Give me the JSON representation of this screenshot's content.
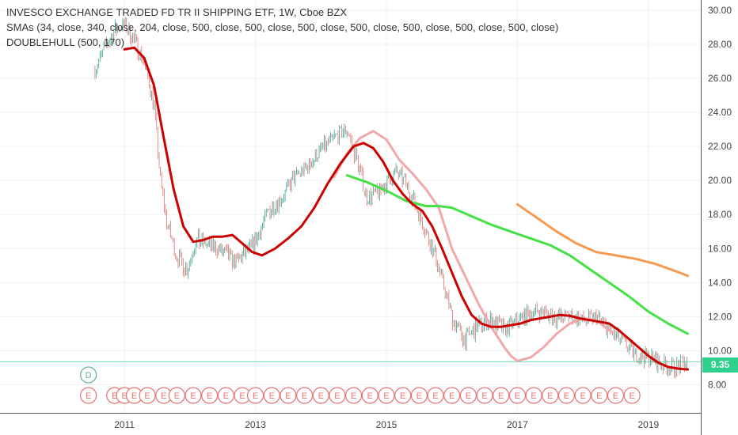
{
  "legend": {
    "line1": "INVESCO EXCHANGE TRADED FD TR II SHIPPING ETF, 1W, Cboe BZX",
    "line2": "SMAs (34, close, 340, close, 204, close, 500, close, 500, close, 500, close, 500, close, 500, close, 500, close, 500, close)",
    "line3": "DOUBLEHULL (500, 170)"
  },
  "price_label": "9.35",
  "colors": {
    "sma34": "#cc0000",
    "sma_faded": "#f0a8a8",
    "sma204": "#45e045",
    "sma340": "#f59a50",
    "candle_up": "#3aa38f",
    "candle_down": "#e36f6f",
    "price_line": "#2ed18b",
    "event_circle": "#e57373",
    "dividend_circle": "#5fb08a"
  },
  "chart_data": {
    "type": "line",
    "x_unit": "year",
    "xlim": [
      2009.1,
      2019.8
    ],
    "ylim": [
      6.35,
      30.6
    ],
    "x_ticks": [
      2011,
      2013,
      2015,
      2017,
      2019
    ],
    "x_tick_labels": [
      "2011",
      "2013",
      "2015",
      "2017",
      "2019"
    ],
    "y_ticks": [
      8,
      10,
      12,
      14,
      16,
      18,
      20,
      22,
      24,
      26,
      28,
      30
    ],
    "y_tick_labels": [
      "8.00",
      "10.00",
      "12.00",
      "14.00",
      "16.00",
      "18.00",
      "20.00",
      "22.00",
      "24.00",
      "26.00",
      "28.00",
      "30.00"
    ],
    "last_price": 9.35,
    "grid": true,
    "price": {
      "x": [
        2010.55,
        2010.7,
        2010.85,
        2011.0,
        2011.15,
        2011.3,
        2011.45,
        2011.55,
        2011.65,
        2011.8,
        2011.95,
        2012.1,
        2012.3,
        2012.5,
        2012.7,
        2012.9,
        2013.0,
        2013.2,
        2013.4,
        2013.6,
        2013.8,
        2014.0,
        2014.2,
        2014.4,
        2014.55,
        2014.7,
        2014.85,
        2015.0,
        2015.15,
        2015.3,
        2015.45,
        2015.6,
        2015.75,
        2015.9,
        2016.0,
        2016.2,
        2016.4,
        2016.6,
        2016.8,
        2017.0,
        2017.2,
        2017.4,
        2017.6,
        2017.8,
        2018.0,
        2018.2,
        2018.4,
        2018.6,
        2018.8,
        2019.0,
        2019.2,
        2019.4,
        2019.6
      ],
      "y": [
        26.5,
        27.8,
        28.8,
        29.2,
        28.2,
        27.0,
        24.5,
        20.0,
        17.5,
        15.5,
        14.8,
        16.5,
        16.2,
        15.8,
        15.2,
        15.9,
        16.4,
        18.2,
        19.0,
        20.2,
        20.8,
        21.8,
        22.5,
        23.0,
        21.2,
        19.0,
        19.2,
        19.8,
        20.5,
        19.8,
        18.5,
        17.0,
        15.5,
        13.5,
        12.0,
        10.6,
        11.5,
        11.8,
        11.2,
        11.8,
        12.2,
        12.3,
        11.9,
        12.1,
        11.7,
        12.0,
        11.2,
        10.5,
        9.8,
        9.6,
        9.2,
        9.0,
        9.35
      ]
    },
    "series": [
      {
        "key": "sma34",
        "x": [
          2011.0,
          2011.15,
          2011.3,
          2011.45,
          2011.6,
          2011.75,
          2011.9,
          2012.05,
          2012.2,
          2012.35,
          2012.5,
          2012.65,
          2012.8,
          2012.95,
          2013.1,
          2013.3,
          2013.5,
          2013.7,
          2013.9,
          2014.1,
          2014.3,
          2014.5,
          2014.65,
          2014.8,
          2014.95,
          2015.1,
          2015.25,
          2015.4,
          2015.55,
          2015.7,
          2015.85,
          2016.0,
          2016.15,
          2016.3,
          2016.45,
          2016.6,
          2016.75,
          2016.9,
          2017.05,
          2017.2,
          2017.35,
          2017.5,
          2017.65,
          2017.8,
          2017.95,
          2018.1,
          2018.25,
          2018.4,
          2018.55,
          2018.7,
          2018.85,
          2019.0,
          2019.15,
          2019.3,
          2019.45,
          2019.6
        ],
        "y": [
          27.7,
          27.8,
          27.2,
          25.6,
          22.5,
          19.5,
          17.3,
          16.4,
          16.5,
          16.7,
          16.7,
          16.8,
          16.3,
          15.8,
          15.6,
          16.0,
          16.6,
          17.3,
          18.4,
          19.8,
          21.0,
          22.0,
          22.2,
          21.9,
          21.1,
          20.0,
          19.2,
          18.6,
          18.2,
          17.3,
          16.0,
          14.6,
          13.2,
          12.1,
          11.6,
          11.4,
          11.4,
          11.5,
          11.6,
          11.8,
          11.9,
          12.0,
          12.1,
          12.05,
          11.9,
          11.8,
          11.7,
          11.6,
          11.2,
          10.7,
          10.2,
          9.7,
          9.3,
          9.05,
          8.95,
          8.9
        ]
      },
      {
        "key": "sma_faded",
        "x": [
          2014.2,
          2014.4,
          2014.6,
          2014.8,
          2015.0,
          2015.2,
          2015.4,
          2015.6,
          2015.8,
          2016.0,
          2016.2,
          2016.4,
          2016.6,
          2016.8,
          2016.9,
          2017.0,
          2017.2,
          2017.4,
          2017.6,
          2017.8,
          2018.0,
          2018.2,
          2018.4
        ],
        "y": [
          20.2,
          21.6,
          22.5,
          22.9,
          22.4,
          21.2,
          20.4,
          19.5,
          18.4,
          16.0,
          14.4,
          12.8,
          11.4,
          10.2,
          9.7,
          9.4,
          9.6,
          10.2,
          11.0,
          11.6,
          11.9,
          11.8,
          11.2
        ]
      },
      {
        "key": "sma204",
        "x": [
          2014.4,
          2014.7,
          2015.0,
          2015.3,
          2015.6,
          2015.8,
          2016.0,
          2016.3,
          2016.6,
          2016.9,
          2017.2,
          2017.5,
          2017.8,
          2018.1,
          2018.4,
          2018.7,
          2019.0,
          2019.3,
          2019.6
        ],
        "y": [
          20.3,
          19.9,
          19.4,
          18.8,
          18.5,
          18.5,
          18.4,
          17.9,
          17.4,
          17.0,
          16.6,
          16.2,
          15.6,
          14.8,
          14.0,
          13.2,
          12.3,
          11.6,
          11.0
        ]
      },
      {
        "key": "sma340",
        "x": [
          2017.0,
          2017.3,
          2017.6,
          2017.9,
          2018.2,
          2018.5,
          2018.8,
          2019.1,
          2019.4,
          2019.6
        ],
        "y": [
          18.6,
          17.8,
          17.0,
          16.3,
          15.8,
          15.6,
          15.4,
          15.1,
          14.7,
          14.4
        ]
      }
    ],
    "dividend_marker": {
      "x": 2010.45,
      "label": "D"
    },
    "event_markers": {
      "x": [
        2010.45,
        2010.85,
        2011.0,
        2011.15,
        2011.35,
        2011.6,
        2011.8,
        2012.05,
        2012.3,
        2012.55,
        2012.8,
        2013.0,
        2013.25,
        2013.5,
        2013.75,
        2014.0,
        2014.25,
        2014.5,
        2014.75,
        2015.0,
        2015.25,
        2015.5,
        2015.75,
        2016.0,
        2016.25,
        2016.5,
        2016.75,
        2017.0,
        2017.25,
        2017.5,
        2017.75,
        2018.0,
        2018.25,
        2018.5,
        2018.75
      ],
      "labels": [
        "E",
        "E",
        "E",
        "E",
        "E",
        "E",
        "E",
        "E",
        "E",
        "E",
        "E",
        "E",
        "E",
        "E",
        "E",
        "E",
        "E",
        "E",
        "E",
        "E",
        "E",
        "E",
        "E",
        "E",
        "E",
        "E",
        "E",
        "E",
        "E",
        "E",
        "E",
        "E",
        "E",
        "E",
        "E"
      ]
    }
  }
}
